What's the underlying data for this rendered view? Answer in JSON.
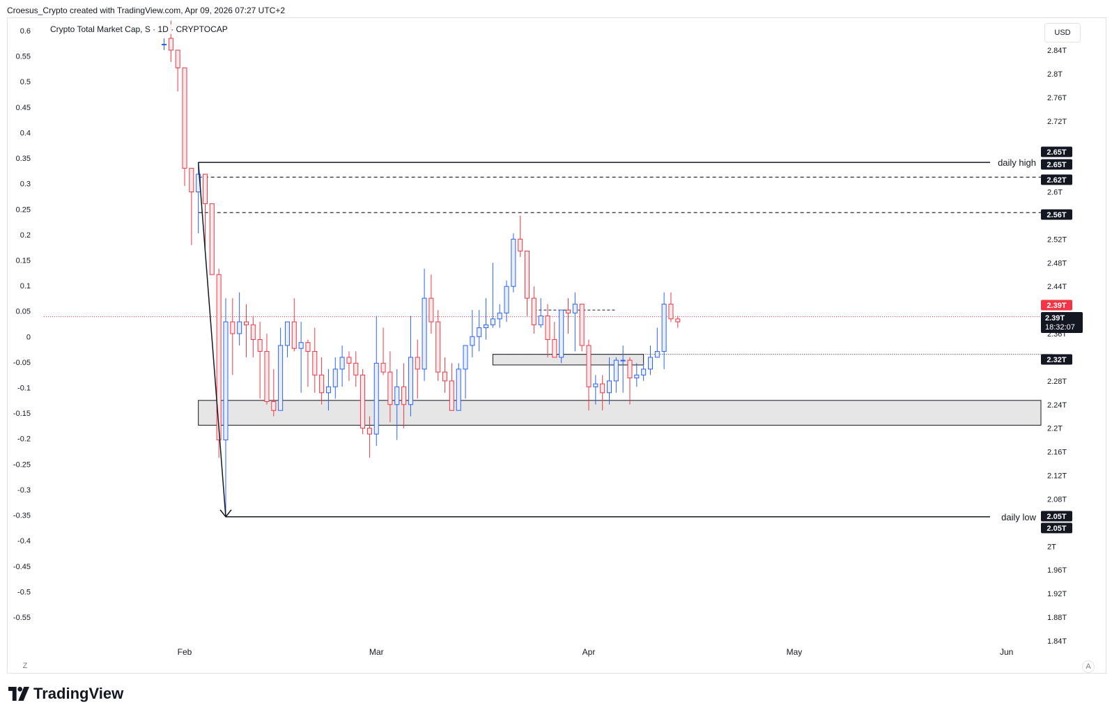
{
  "header": {
    "text": "Croesus_Crypto created with TradingView.com, Apr 09, 2026 07:27 UTC+2"
  },
  "legend": {
    "symbol": "Crypto Total Market Cap, S · 1D · CRYPTOCAP"
  },
  "currency": "USD",
  "brand": {
    "name": "TradingView"
  },
  "corner": {
    "left": "Z",
    "right": "A"
  },
  "colors": {
    "up": "#2962ff",
    "down": "#f23645",
    "zone_fill": "#e6e6e6",
    "price_red": "#f23645"
  },
  "chart_data": {
    "type": "candlestick",
    "title": "Crypto Total Market Cap, S · 1D · CRYPTOCAP",
    "interval": "1D",
    "right_axis": {
      "unit": "USD",
      "ticks": [
        "2.84T",
        "2.8T",
        "2.76T",
        "2.72T",
        "2.6T",
        "2.52T",
        "2.48T",
        "2.44T",
        "2.36T",
        "2.28T",
        "2.24T",
        "2.2T",
        "2.16T",
        "2.12T",
        "2.08T",
        "2T",
        "1.96T",
        "1.92T",
        "1.88T",
        "1.84T"
      ],
      "range": [
        1.84,
        2.86
      ]
    },
    "left_axis": {
      "ticks": [
        "0.6",
        "0.55",
        "0.5",
        "0.45",
        "0.4",
        "0.35",
        "0.3",
        "0.25",
        "0.2",
        "0.15",
        "0.1",
        "0.05",
        "0",
        "-0.05",
        "-0.1",
        "-0.15",
        "-0.2",
        "-0.25",
        "-0.3",
        "-0.35",
        "-0.4",
        "-0.45",
        "-0.5",
        "-0.55"
      ],
      "range": [
        -0.55,
        0.6
      ]
    },
    "x_axis": {
      "labels": [
        "Feb",
        "Mar",
        "Apr",
        "May",
        "Jun"
      ],
      "label_day_index": [
        3,
        31,
        62,
        92,
        123
      ]
    },
    "candles": [
      {
        "o": 2.85,
        "h": 2.86,
        "l": 2.84,
        "c": 2.85
      },
      {
        "o": 2.86,
        "h": 2.89,
        "l": 2.82,
        "c": 2.84
      },
      {
        "o": 2.84,
        "h": 2.84,
        "l": 2.77,
        "c": 2.81
      },
      {
        "o": 2.81,
        "h": 2.81,
        "l": 2.61,
        "c": 2.64
      },
      {
        "o": 2.64,
        "h": 2.64,
        "l": 2.51,
        "c": 2.6
      },
      {
        "o": 2.6,
        "h": 2.65,
        "l": 2.53,
        "c": 2.63
      },
      {
        "o": 2.63,
        "h": 2.63,
        "l": 2.5,
        "c": 2.58
      },
      {
        "o": 2.58,
        "h": 2.58,
        "l": 2.46,
        "c": 2.46
      },
      {
        "o": 2.46,
        "h": 2.47,
        "l": 2.15,
        "c": 2.18
      },
      {
        "o": 2.18,
        "h": 2.42,
        "l": 2.05,
        "c": 2.38
      },
      {
        "o": 2.38,
        "h": 2.42,
        "l": 2.29,
        "c": 2.36
      },
      {
        "o": 2.36,
        "h": 2.43,
        "l": 2.34,
        "c": 2.38
      },
      {
        "o": 2.38,
        "h": 2.41,
        "l": 2.32,
        "c": 2.375
      },
      {
        "o": 2.375,
        "h": 2.39,
        "l": 2.32,
        "c": 2.35
      },
      {
        "o": 2.35,
        "h": 2.38,
        "l": 2.25,
        "c": 2.33
      },
      {
        "o": 2.33,
        "h": 2.36,
        "l": 2.24,
        "c": 2.245
      },
      {
        "o": 2.245,
        "h": 2.3,
        "l": 2.22,
        "c": 2.23
      },
      {
        "o": 2.23,
        "h": 2.37,
        "l": 2.23,
        "c": 2.34
      },
      {
        "o": 2.34,
        "h": 2.38,
        "l": 2.32,
        "c": 2.38
      },
      {
        "o": 2.38,
        "h": 2.42,
        "l": 2.33,
        "c": 2.335
      },
      {
        "o": 2.335,
        "h": 2.38,
        "l": 2.26,
        "c": 2.345
      },
      {
        "o": 2.345,
        "h": 2.35,
        "l": 2.27,
        "c": 2.33
      },
      {
        "o": 2.33,
        "h": 2.37,
        "l": 2.26,
        "c": 2.29
      },
      {
        "o": 2.29,
        "h": 2.32,
        "l": 2.24,
        "c": 2.26
      },
      {
        "o": 2.26,
        "h": 2.3,
        "l": 2.23,
        "c": 2.27
      },
      {
        "o": 2.27,
        "h": 2.32,
        "l": 2.25,
        "c": 2.3
      },
      {
        "o": 2.3,
        "h": 2.34,
        "l": 2.27,
        "c": 2.32
      },
      {
        "o": 2.32,
        "h": 2.33,
        "l": 2.28,
        "c": 2.31
      },
      {
        "o": 2.31,
        "h": 2.33,
        "l": 2.27,
        "c": 2.29
      },
      {
        "o": 2.29,
        "h": 2.3,
        "l": 2.19,
        "c": 2.2
      },
      {
        "o": 2.2,
        "h": 2.22,
        "l": 2.15,
        "c": 2.19
      },
      {
        "o": 2.19,
        "h": 2.39,
        "l": 2.17,
        "c": 2.31
      },
      {
        "o": 2.31,
        "h": 2.37,
        "l": 2.29,
        "c": 2.295
      },
      {
        "o": 2.295,
        "h": 2.33,
        "l": 2.21,
        "c": 2.24
      },
      {
        "o": 2.24,
        "h": 2.3,
        "l": 2.18,
        "c": 2.27
      },
      {
        "o": 2.27,
        "h": 2.31,
        "l": 2.2,
        "c": 2.24
      },
      {
        "o": 2.24,
        "h": 2.39,
        "l": 2.22,
        "c": 2.32
      },
      {
        "o": 2.32,
        "h": 2.35,
        "l": 2.25,
        "c": 2.3
      },
      {
        "o": 2.3,
        "h": 2.47,
        "l": 2.28,
        "c": 2.42
      },
      {
        "o": 2.42,
        "h": 2.46,
        "l": 2.36,
        "c": 2.38
      },
      {
        "o": 2.38,
        "h": 2.4,
        "l": 2.28,
        "c": 2.295
      },
      {
        "o": 2.295,
        "h": 2.32,
        "l": 2.26,
        "c": 2.28
      },
      {
        "o": 2.28,
        "h": 2.31,
        "l": 2.23,
        "c": 2.23
      },
      {
        "o": 2.23,
        "h": 2.31,
        "l": 2.23,
        "c": 2.3
      },
      {
        "o": 2.3,
        "h": 2.34,
        "l": 2.25,
        "c": 2.34
      },
      {
        "o": 2.34,
        "h": 2.4,
        "l": 2.32,
        "c": 2.355
      },
      {
        "o": 2.355,
        "h": 2.4,
        "l": 2.33,
        "c": 2.37
      },
      {
        "o": 2.37,
        "h": 2.42,
        "l": 2.35,
        "c": 2.375
      },
      {
        "o": 2.375,
        "h": 2.48,
        "l": 2.37,
        "c": 2.385
      },
      {
        "o": 2.385,
        "h": 2.41,
        "l": 2.37,
        "c": 2.395
      },
      {
        "o": 2.395,
        "h": 2.45,
        "l": 2.38,
        "c": 2.44
      },
      {
        "o": 2.44,
        "h": 2.53,
        "l": 2.43,
        "c": 2.52
      },
      {
        "o": 2.52,
        "h": 2.56,
        "l": 2.49,
        "c": 2.5
      },
      {
        "o": 2.5,
        "h": 2.5,
        "l": 2.39,
        "c": 2.42
      },
      {
        "o": 2.42,
        "h": 2.44,
        "l": 2.36,
        "c": 2.375
      },
      {
        "o": 2.375,
        "h": 2.42,
        "l": 2.37,
        "c": 2.39
      },
      {
        "o": 2.39,
        "h": 2.41,
        "l": 2.32,
        "c": 2.35
      },
      {
        "o": 2.35,
        "h": 2.38,
        "l": 2.32,
        "c": 2.32
      },
      {
        "o": 2.32,
        "h": 2.4,
        "l": 2.31,
        "c": 2.4
      },
      {
        "o": 2.4,
        "h": 2.42,
        "l": 2.36,
        "c": 2.395
      },
      {
        "o": 2.395,
        "h": 2.43,
        "l": 2.33,
        "c": 2.41
      },
      {
        "o": 2.41,
        "h": 2.41,
        "l": 2.33,
        "c": 2.34
      },
      {
        "o": 2.34,
        "h": 2.35,
        "l": 2.23,
        "c": 2.27
      },
      {
        "o": 2.27,
        "h": 2.29,
        "l": 2.24,
        "c": 2.275
      },
      {
        "o": 2.275,
        "h": 2.29,
        "l": 2.23,
        "c": 2.26
      },
      {
        "o": 2.26,
        "h": 2.32,
        "l": 2.24,
        "c": 2.28
      },
      {
        "o": 2.28,
        "h": 2.32,
        "l": 2.26,
        "c": 2.315
      },
      {
        "o": 2.315,
        "h": 2.34,
        "l": 2.26,
        "c": 2.315
      },
      {
        "o": 2.315,
        "h": 2.32,
        "l": 2.24,
        "c": 2.285
      },
      {
        "o": 2.285,
        "h": 2.31,
        "l": 2.27,
        "c": 2.29
      },
      {
        "o": 2.29,
        "h": 2.31,
        "l": 2.28,
        "c": 2.3
      },
      {
        "o": 2.3,
        "h": 2.34,
        "l": 2.29,
        "c": 2.32
      },
      {
        "o": 2.32,
        "h": 2.37,
        "l": 2.32,
        "c": 2.33
      },
      {
        "o": 2.33,
        "h": 2.43,
        "l": 2.3,
        "c": 2.41
      },
      {
        "o": 2.41,
        "h": 2.43,
        "l": 2.38,
        "c": 2.385
      },
      {
        "o": 2.385,
        "h": 2.39,
        "l": 2.37,
        "c": 2.38
      }
    ],
    "levels": [
      {
        "label": "2.65T",
        "value": 2.65,
        "style": "solid",
        "text": "daily high"
      },
      {
        "label": "2.62T",
        "value": 2.625,
        "style": "dashed"
      },
      {
        "label": "2.56T",
        "value": 2.565,
        "style": "dashed"
      },
      {
        "label": "2.32T",
        "value": 2.325,
        "style": "dotted"
      },
      {
        "label": "2.05T",
        "value": 2.05,
        "style": "solid",
        "text": "daily low"
      }
    ],
    "daily_high_label": "daily high",
    "daily_low_label": "daily low",
    "price_labels": {
      "high_top": "2.65T",
      "high_bottom": "2.65T",
      "dash1": "2.62T",
      "dash2": "2.56T",
      "current_red": "2.39T",
      "current": "2.39T",
      "countdown": "18:32:07",
      "support": "2.32T",
      "low_top": "2.05T",
      "low_bottom": "2.05T"
    },
    "current_price": 2.39,
    "zones": [
      {
        "from_day": 5,
        "to_day": 123,
        "low": 2.205,
        "high": 2.247
      },
      {
        "from_day": 48,
        "to_day": 70,
        "low": 2.307,
        "high": 2.325
      }
    ],
    "small_dashed_level": {
      "from_day": 54,
      "to_day": 66,
      "value": 2.4
    }
  }
}
